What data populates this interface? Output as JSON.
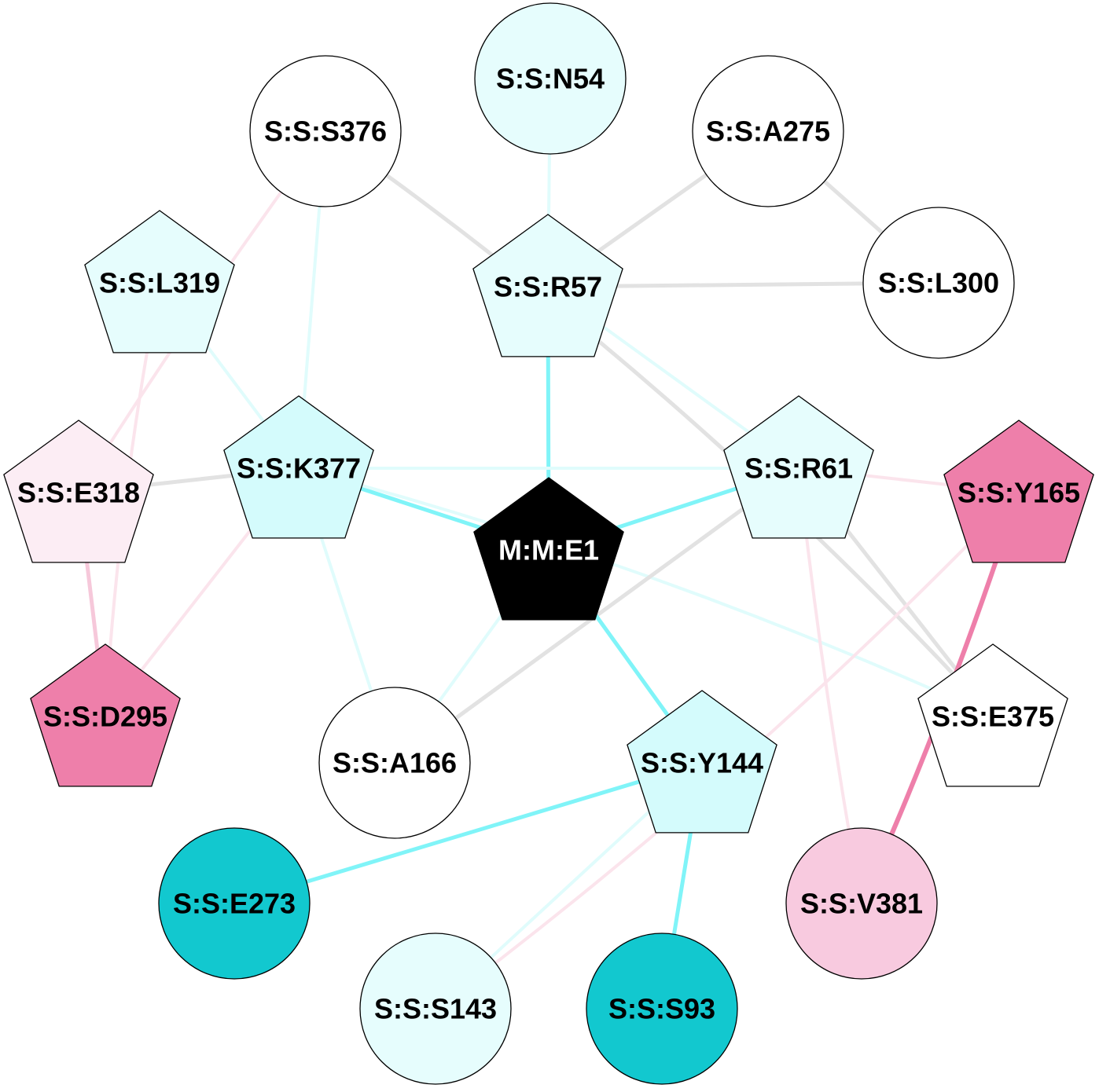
{
  "colors": {
    "gray_edge": "#e2e2e2",
    "light_cyan_edge": "#e0fcfc",
    "cyan_edge": "#80f4f8",
    "pink_edge": "#fbe4ec",
    "pink_mid_edge": "#f6c8da",
    "magenta_edge": "#ee7faa"
  },
  "nodes": [
    {
      "id": "N54",
      "label": "S:S:N54",
      "shape": "circle",
      "fill": "#e6fdfd",
      "text": "#000000"
    },
    {
      "id": "S376",
      "label": "S:S:S376",
      "shape": "circle",
      "fill": "#ffffff",
      "text": "#000000"
    },
    {
      "id": "A275",
      "label": "S:S:A275",
      "shape": "circle",
      "fill": "#ffffff",
      "text": "#000000"
    },
    {
      "id": "L319",
      "label": "S:S:L319",
      "shape": "pentagon",
      "fill": "#e6fdfd",
      "text": "#000000"
    },
    {
      "id": "R57",
      "label": "S:S:R57",
      "shape": "pentagon",
      "fill": "#e6fdfd",
      "text": "#000000"
    },
    {
      "id": "L300",
      "label": "S:S:L300",
      "shape": "circle",
      "fill": "#ffffff",
      "text": "#000000"
    },
    {
      "id": "E318",
      "label": "S:S:E318",
      "shape": "pentagon",
      "fill": "#fcedf4",
      "text": "#000000"
    },
    {
      "id": "K377",
      "label": "S:S:K377",
      "shape": "pentagon",
      "fill": "#d4fbfc",
      "text": "#000000"
    },
    {
      "id": "R61",
      "label": "S:S:R61",
      "shape": "pentagon",
      "fill": "#e6fdfd",
      "text": "#000000"
    },
    {
      "id": "Y165",
      "label": "S:S:Y165",
      "shape": "pentagon",
      "fill": "#ee7faa",
      "text": "#000000"
    },
    {
      "id": "E1",
      "label": "M:M:E1",
      "shape": "pentagon",
      "fill": "#000000",
      "text": "#ffffff"
    },
    {
      "id": "D295",
      "label": "S:S:D295",
      "shape": "pentagon",
      "fill": "#ee7faa",
      "text": "#000000"
    },
    {
      "id": "A166",
      "label": "S:S:A166",
      "shape": "circle",
      "fill": "#ffffff",
      "text": "#000000"
    },
    {
      "id": "E375",
      "label": "S:S:E375",
      "shape": "pentagon",
      "fill": "#ffffff",
      "text": "#000000"
    },
    {
      "id": "Y144",
      "label": "S:S:Y144",
      "shape": "pentagon",
      "fill": "#d4fbfc",
      "text": "#000000"
    },
    {
      "id": "E273",
      "label": "S:S:E273",
      "shape": "circle",
      "fill": "#12c8cf",
      "text": "#000000"
    },
    {
      "id": "V381",
      "label": "S:S:V381",
      "shape": "circle",
      "fill": "#f8cadf",
      "text": "#000000"
    },
    {
      "id": "S143",
      "label": "S:S:S143",
      "shape": "circle",
      "fill": "#e6fdfd",
      "text": "#000000"
    },
    {
      "id": "S93",
      "label": "S:S:S93",
      "shape": "circle",
      "fill": "#12c8cf",
      "text": "#000000"
    }
  ],
  "edges": [
    {
      "from": "N54",
      "to": "R57",
      "color": "light_cyan_edge"
    },
    {
      "from": "R57",
      "to": "A275",
      "color": "gray_edge"
    },
    {
      "from": "R57",
      "to": "L300",
      "color": "gray_edge"
    },
    {
      "from": "A275",
      "to": "L300",
      "color": "gray_edge"
    },
    {
      "from": "R57",
      "to": "E1",
      "color": "cyan_edge"
    },
    {
      "from": "R57",
      "to": "R61",
      "color": "light_cyan_edge"
    },
    {
      "from": "S376",
      "to": "K377",
      "color": "light_cyan_edge"
    },
    {
      "from": "S376",
      "to": "E318",
      "color": "pink_edge"
    },
    {
      "from": "S376",
      "to": "E375",
      "color": "gray_edge"
    },
    {
      "from": "L319",
      "to": "K377",
      "color": "light_cyan_edge"
    },
    {
      "from": "L319",
      "to": "D295",
      "color": "pink_edge"
    },
    {
      "from": "E318",
      "to": "K377",
      "color": "gray_edge"
    },
    {
      "from": "E318",
      "to": "D295",
      "color": "pink_mid_edge"
    },
    {
      "from": "K377",
      "to": "D295",
      "color": "pink_edge"
    },
    {
      "from": "K377",
      "to": "R61",
      "color": "light_cyan_edge"
    },
    {
      "from": "K377",
      "to": "E1",
      "color": "cyan_edge"
    },
    {
      "from": "K377",
      "to": "A166",
      "color": "light_cyan_edge"
    },
    {
      "from": "K377",
      "to": "E375",
      "color": "light_cyan_edge"
    },
    {
      "from": "R61",
      "to": "E1",
      "color": "cyan_edge"
    },
    {
      "from": "R61",
      "to": "Y165",
      "color": "pink_edge"
    },
    {
      "from": "R61",
      "to": "A166",
      "color": "gray_edge"
    },
    {
      "from": "R61",
      "to": "E375",
      "color": "gray_edge"
    },
    {
      "from": "R61",
      "to": "V381",
      "color": "pink_edge"
    },
    {
      "from": "Y165",
      "to": "V381",
      "color": "magenta_edge"
    },
    {
      "from": "Y165",
      "to": "S143",
      "color": "pink_edge"
    },
    {
      "from": "E1",
      "to": "A166",
      "color": "light_cyan_edge"
    },
    {
      "from": "E1",
      "to": "Y144",
      "color": "cyan_edge"
    },
    {
      "from": "Y144",
      "to": "E273",
      "color": "cyan_edge"
    },
    {
      "from": "Y144",
      "to": "S93",
      "color": "cyan_edge"
    },
    {
      "from": "Y144",
      "to": "S143",
      "color": "light_cyan_edge"
    }
  ]
}
